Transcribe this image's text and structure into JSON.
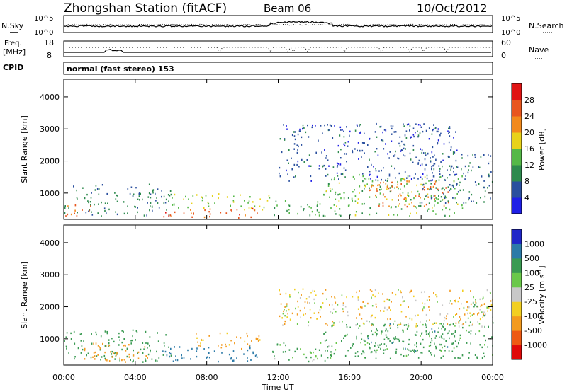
{
  "header": {
    "title": "Zhongshan Station (fitACF)",
    "beam": "Beam 06",
    "date": "10/Oct/2012"
  },
  "top_panels": {
    "nsky_label": "N.Sky",
    "nsky_ticks": [
      "10^5",
      "10^0"
    ],
    "nsearch_label": "N.Search",
    "nsearch_ticks": [
      "10^5",
      "10^0"
    ],
    "freq_label_1": "Freq.",
    "freq_label_2": "[MHz]",
    "freq_ticks": [
      "18",
      "8"
    ],
    "nave_label": "Nave",
    "nave_ticks": [
      "60",
      "0"
    ],
    "cpid_label": "CPID",
    "cpid_text": "normal (fast stereo) 153"
  },
  "colors": {
    "power_scale": [
      "#1f1fe6",
      "#2a4f9e",
      "#2e8a4e",
      "#55b848",
      "#e8d21a",
      "#f28a1c",
      "#e8561e",
      "#e01414"
    ],
    "velocity_scale": [
      "#e00a0a",
      "#ee5a14",
      "#f39a1e",
      "#f2cf22",
      "#c8c8c8",
      "#6ac84a",
      "#3a9a52",
      "#2c7aa8",
      "#2026c8"
    ]
  },
  "chart_data": [
    {
      "type": "heatmap",
      "name": "power",
      "xlabel": "",
      "ylabel": "Slant Range [km]",
      "x_ticks": [
        "00:00",
        "04:00",
        "08:00",
        "12:00",
        "16:00",
        "20:00",
        "00:00"
      ],
      "xlim_hours": [
        0,
        24
      ],
      "y_ticks": [
        "1000",
        "2000",
        "3000",
        "4000"
      ],
      "ylim": [
        180,
        4550
      ],
      "colorbar_label": "Power [dB]",
      "colorbar_ticks": [
        "4",
        "8",
        "12",
        "16",
        "20",
        "24",
        "28"
      ],
      "colorbar_range": [
        0,
        32
      ],
      "scatter_regions": [
        {
          "t0": 0.0,
          "t1": 6.0,
          "r0": 300,
          "r1": 1300,
          "val": 9
        },
        {
          "t0": 0.0,
          "t1": 1.5,
          "r0": 300,
          "r1": 700,
          "val": 24
        },
        {
          "t0": 5.5,
          "t1": 11.0,
          "r0": 250,
          "r1": 550,
          "val": 26
        },
        {
          "t0": 6.0,
          "t1": 11.5,
          "r0": 500,
          "r1": 1000,
          "val": 16
        },
        {
          "t0": 11.5,
          "t1": 14.5,
          "r0": 300,
          "r1": 800,
          "val": 12
        },
        {
          "t0": 14.5,
          "t1": 22.5,
          "r0": 300,
          "r1": 1600,
          "val": 14
        },
        {
          "t0": 17.0,
          "t1": 21.5,
          "r0": 600,
          "r1": 1400,
          "val": 24
        },
        {
          "t0": 20.0,
          "t1": 24.0,
          "r0": 700,
          "r1": 2300,
          "val": 8
        },
        {
          "t0": 12.0,
          "t1": 22.0,
          "r0": 1400,
          "r1": 3200,
          "val": 6
        }
      ]
    },
    {
      "type": "heatmap",
      "name": "velocity",
      "xlabel": "Time UT",
      "ylabel": "Slant Range [km]",
      "x_ticks": [
        "00:00",
        "04:00",
        "08:00",
        "12:00",
        "16:00",
        "20:00",
        "00:00"
      ],
      "xlim_hours": [
        0,
        24
      ],
      "y_ticks": [
        "1000",
        "2000",
        "3000",
        "4000"
      ],
      "ylim": [
        180,
        4550
      ],
      "colorbar_label": "Velocity [m s^-1]",
      "colorbar_ticks": [
        "1000",
        "500",
        "100",
        "25",
        "-25",
        "-100",
        "-500",
        "-1000"
      ],
      "scatter_regions": [
        {
          "t0": 0.0,
          "t1": 6.0,
          "r0": 300,
          "r1": 1300,
          "val": 300
        },
        {
          "t0": 1.0,
          "t1": 5.0,
          "r0": 300,
          "r1": 900,
          "val": -300
        },
        {
          "t0": 5.5,
          "t1": 11.0,
          "r0": 300,
          "r1": 800,
          "val": 800
        },
        {
          "t0": 7.0,
          "t1": 11.0,
          "r0": 700,
          "r1": 1200,
          "val": -200
        },
        {
          "t0": 11.5,
          "t1": 15.0,
          "r0": 300,
          "r1": 900,
          "val": 150
        },
        {
          "t0": 14.5,
          "t1": 24.0,
          "r0": 400,
          "r1": 1600,
          "val": 200
        },
        {
          "t0": 17.0,
          "t1": 22.0,
          "r0": 600,
          "r1": 1500,
          "val": 400
        },
        {
          "t0": 12.0,
          "t1": 24.0,
          "r0": 1400,
          "r1": 2600,
          "val": -80
        },
        {
          "t0": 22.5,
          "t1": 24.0,
          "r0": 1600,
          "r1": 2400,
          "val": 0
        }
      ]
    }
  ]
}
